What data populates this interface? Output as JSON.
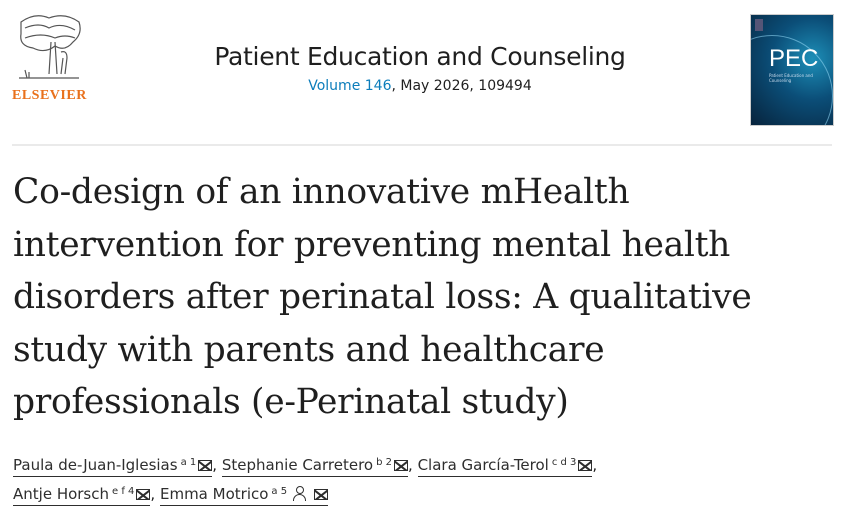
{
  "publisher": {
    "logo_text": "ELSEVIER"
  },
  "journal": {
    "title": "Patient Education and Counseling",
    "volume_link": "Volume 146",
    "details": ", May 2026, 109494",
    "cover_text": "PEC",
    "cover_subtitle": "Patient Education and Counseling"
  },
  "article": {
    "title": "Co-design of an innovative mHealth intervention for preventing mental health disorders after perinatal loss: A qualitative study with parents and healthcare professionals (e-Perinatal study)"
  },
  "authors": [
    {
      "name": "Paula de-Juan-Iglesias",
      "sup": "a 1"
    },
    {
      "name": "Stephanie Carretero",
      "sup": "b 2"
    },
    {
      "name": "Clara García-Terol",
      "sup": "c d 3"
    },
    {
      "name": "Antje Horsch",
      "sup": "e f 4"
    },
    {
      "name": "Emma Motrico",
      "sup": "a 5"
    }
  ],
  "separator": ","
}
